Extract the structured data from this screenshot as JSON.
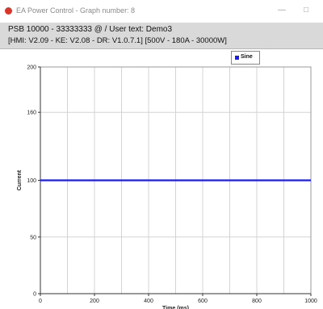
{
  "window": {
    "title": "EA Power Control - Graph number: 8",
    "minimize_glyph": "—",
    "close_glyph": "□"
  },
  "header": {
    "device_line": "PSB 10000 - 33333333 @ / User text: Demo3",
    "info_line": "[HMI: V2.09 - KE: V2.08 - DR: V1.0.7.1] [500V - 180A - 30000W]"
  },
  "chart_data": {
    "type": "line",
    "xlabel": "Time (ms)",
    "ylabel": "Current",
    "xlim": [
      0,
      1000
    ],
    "ylim": [
      0,
      200
    ],
    "xticks": [
      0,
      200,
      400,
      600,
      800,
      1000
    ],
    "yticks": [
      0,
      50,
      100,
      160,
      200
    ],
    "grid": true,
    "legend_position": "top-right",
    "series": [
      {
        "name": "Sine",
        "color": "#1a1aff",
        "x": [
          0,
          1000
        ],
        "y": [
          100,
          100
        ]
      }
    ]
  }
}
